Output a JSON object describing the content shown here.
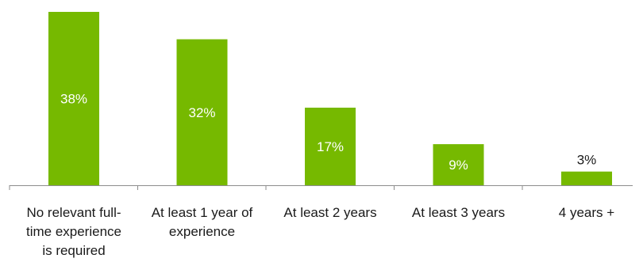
{
  "chart_data": {
    "type": "bar",
    "title": "",
    "xlabel": "",
    "ylabel": "",
    "ylim": [
      0,
      40
    ],
    "grid": false,
    "legend": "none",
    "categories": [
      [
        "No relevant full-",
        "time experience",
        "is required"
      ],
      [
        "At least 1 year of",
        "experience"
      ],
      [
        "At least 2 years"
      ],
      [
        "At least 3 years"
      ],
      [
        "4 years +"
      ]
    ],
    "values": [
      38,
      32,
      17,
      9,
      3
    ],
    "data_labels": [
      "38%",
      "32%",
      "17%",
      "9%",
      "3%"
    ],
    "colors": {
      "bar": "#76B900",
      "label_inside": "#ffffff",
      "label_outside": "#1a1a1a",
      "axis": "#8c8c8c"
    }
  }
}
